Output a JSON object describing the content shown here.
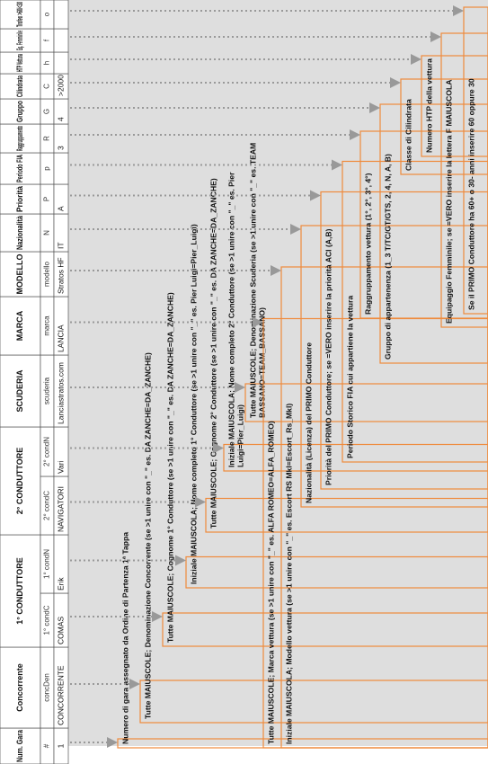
{
  "sheet": {
    "header_row": [
      "Num. Gara",
      "Concorrente",
      "1° CONDUTTORE",
      "2° CONDUTTORE",
      "SCUDERIA",
      "MARCA",
      "MODELLO",
      "Nazionalità",
      "Priorità",
      "Periodo FIA",
      "Raggruppamento",
      "Gruppo",
      "Cilindrata",
      "HTP Vettura",
      "Eq. Femminile",
      "Trofeo >60/<30"
    ],
    "field_row": [
      "#",
      "concDen",
      "1° condC",
      "1° condN",
      "2° condC",
      "2° condN",
      "scuderia",
      "marca",
      "modello",
      "N",
      "P",
      "p",
      "R",
      "G",
      "C",
      "h",
      "f",
      "o"
    ],
    "example_row": [
      "1",
      "CONCORRENTE",
      "COMAS",
      "Erik",
      "NAVIGATORI",
      "Vari",
      "Lanciastratos.com",
      "LANCIA",
      "Stratos HF",
      "IT",
      "A",
      null,
      "3",
      "4",
      ">2000",
      null,
      null,
      null
    ],
    "notes": [
      [
        "Numero di gara assegnato da Ordine di Partenza 1ª Tappa"
      ],
      [
        "Tutte MAIUSCOLE; Denominazione Concorrente (se >1 unire con \"_\" es. DA ZANCHE=DA_ZANCHE)"
      ],
      [
        "Tutte MAIUSCOLE; Cognome 1° Conduttore (se >1 unire con \"_\" es. DA ZANCHE=DA_ZANCHE)"
      ],
      [
        "Iniziale MAIUSCOLA; Nome completo 1° Conduttore (se >1 unire con \"_\" es. Pier Luigi=Pier_Luigi)"
      ],
      [
        "Tutte MAIUSCOLE; Cognome 2° Conduttore (se >1 unire con \"_\" es. DA ZANCHE=DA_ZANCHE)"
      ],
      [
        "Iniziale MAIUSCOLA; Nome completo 2° Conduttore (se >1 unire con \"_\" es. Pier",
        "Luigi=Pier_Luigi)"
      ],
      [
        "Tutte MAIUSCOLE; Denominazione Scuderia (se >1 unire con \"_\" es. TEAM",
        "BASSANO=TEAM_BASSANO)"
      ],
      [
        "Tutte MAIUSCOLE; Marca vettura (se >1 unire con \"_\" es. ALFA ROMEO=ALFA_ROMEO)"
      ],
      [
        "Iniziale MAIUSCOLA; Modello vettura (se >1 unire con \"_\" es. Escort RS Mkl=Escort_Rs_Mkl)"
      ],
      [
        "Nazionalità (Licenza) del PRIMO Conduttore"
      ],
      [
        "Priorità del PRIMO Conduttore; se =VERO inserire la priorità ACI (A,B)"
      ],
      [
        "Periodo Storico FIA cui appartiene la vettura"
      ],
      [
        "Raggruppamento vettura (1°, 2°, 3°, 4°)"
      ],
      [
        "Gruppo di appartenenza (1_3 T/TC/GT/GTS, 2, 4, N, A, B)"
      ],
      [
        "Classe di Cilindrata"
      ],
      [
        "Numero HTP della vettura"
      ],
      [
        "Equipaggio Femminile; se =VERO inserire la lettera F MAIUSCOLA"
      ],
      [
        "Se il PRIMO Conduttore ha 60+ o 30- anni inserire 60 oppure 30"
      ]
    ]
  }
}
